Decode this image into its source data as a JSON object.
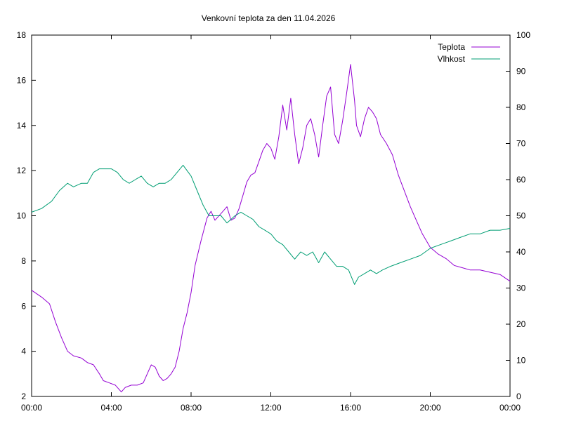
{
  "chart_data": {
    "type": "line",
    "title": "Venkovní teplota za den 11.04.2026",
    "x_ticks": [
      "00:00",
      "04:00",
      "08:00",
      "12:00",
      "16:00",
      "20:00",
      "00:00"
    ],
    "x_range_hours": [
      0,
      24
    ],
    "y_left": {
      "range": [
        2,
        18
      ],
      "ticks": [
        2,
        4,
        6,
        8,
        10,
        12,
        14,
        16,
        18
      ]
    },
    "y_right": {
      "range": [
        0,
        100
      ],
      "ticks": [
        0,
        10,
        20,
        30,
        40,
        50,
        60,
        70,
        80,
        90,
        100
      ]
    },
    "legend_position": "top-right",
    "grid": false,
    "series": [
      {
        "name": "Teplota",
        "axis": "left",
        "color": "#9400d3",
        "x": [
          0,
          0.5,
          0.9,
          1.2,
          1.5,
          1.8,
          2.1,
          2.5,
          2.8,
          3.1,
          3.4,
          3.6,
          3.9,
          4.2,
          4.5,
          4.7,
          5.0,
          5.3,
          5.6,
          5.8,
          6.0,
          6.2,
          6.4,
          6.6,
          6.8,
          7.0,
          7.2,
          7.4,
          7.6,
          7.8,
          8.0,
          8.2,
          8.5,
          8.8,
          9.0,
          9.2,
          9.5,
          9.8,
          10.0,
          10.2,
          10.4,
          10.6,
          10.8,
          11.0,
          11.2,
          11.4,
          11.6,
          11.8,
          12.0,
          12.2,
          12.4,
          12.6,
          12.8,
          13.0,
          13.2,
          13.4,
          13.6,
          13.8,
          14.0,
          14.2,
          14.4,
          14.6,
          14.8,
          15.0,
          15.2,
          15.4,
          15.6,
          15.8,
          16.0,
          16.2,
          16.3,
          16.5,
          16.7,
          16.9,
          17.1,
          17.3,
          17.5,
          17.8,
          18.1,
          18.4,
          18.7,
          19.0,
          19.3,
          19.6,
          20.0,
          20.4,
          20.8,
          21.2,
          21.6,
          22.0,
          22.5,
          23.0,
          23.5,
          24.0
        ],
        "values": [
          6.7,
          6.4,
          6.1,
          5.3,
          4.6,
          4.0,
          3.8,
          3.7,
          3.5,
          3.4,
          3.0,
          2.7,
          2.6,
          2.5,
          2.2,
          2.4,
          2.5,
          2.5,
          2.6,
          3.0,
          3.4,
          3.3,
          2.9,
          2.7,
          2.8,
          3.0,
          3.3,
          4.0,
          5.0,
          5.7,
          6.6,
          7.8,
          8.9,
          9.9,
          10.2,
          9.8,
          10.1,
          10.4,
          9.8,
          9.9,
          10.3,
          10.9,
          11.5,
          11.8,
          11.9,
          12.4,
          12.9,
          13.2,
          13.0,
          12.5,
          13.5,
          14.9,
          13.8,
          15.2,
          13.6,
          12.3,
          13.0,
          14.0,
          14.3,
          13.6,
          12.6,
          14.0,
          15.3,
          15.7,
          13.6,
          13.2,
          14.2,
          15.4,
          16.7,
          15.1,
          14.0,
          13.5,
          14.3,
          14.8,
          14.6,
          14.3,
          13.6,
          13.2,
          12.7,
          11.8,
          11.1,
          10.4,
          9.8,
          9.2,
          8.6,
          8.3,
          8.1,
          7.8,
          7.7,
          7.6,
          7.6,
          7.5,
          7.4,
          7.1
        ]
      },
      {
        "name": "Vlhkost",
        "axis": "right",
        "color": "#009e73",
        "x": [
          0,
          0.5,
          1.0,
          1.4,
          1.8,
          2.1,
          2.5,
          2.8,
          3.1,
          3.4,
          3.7,
          4.0,
          4.3,
          4.6,
          4.9,
          5.2,
          5.5,
          5.8,
          6.1,
          6.4,
          6.7,
          7.0,
          7.3,
          7.6,
          8.0,
          8.3,
          8.6,
          8.9,
          9.2,
          9.5,
          9.8,
          10.0,
          10.2,
          10.5,
          10.8,
          11.1,
          11.4,
          11.7,
          12.0,
          12.3,
          12.6,
          12.9,
          13.2,
          13.5,
          13.8,
          14.1,
          14.4,
          14.7,
          15.0,
          15.3,
          15.6,
          15.9,
          16.2,
          16.4,
          16.7,
          17.0,
          17.3,
          17.6,
          18.0,
          18.5,
          19.0,
          19.5,
          20.0,
          20.5,
          21.0,
          21.5,
          22.0,
          22.5,
          23.0,
          23.5,
          24.0
        ],
        "values": [
          51,
          52,
          54,
          57,
          59,
          58,
          59,
          59,
          62,
          63,
          63,
          63,
          62,
          60,
          59,
          60,
          61,
          59,
          58,
          59,
          59,
          60,
          62,
          64,
          61,
          57,
          53,
          50,
          50,
          50,
          48,
          49,
          50,
          51,
          50,
          49,
          47,
          46,
          45,
          43,
          42,
          40,
          38,
          40,
          39,
          40,
          37,
          40,
          38,
          36,
          36,
          35,
          31,
          33,
          34,
          35,
          34,
          35,
          36,
          37,
          38,
          39,
          41,
          42,
          43,
          44,
          45,
          45,
          46,
          46,
          46.5
        ]
      }
    ]
  }
}
